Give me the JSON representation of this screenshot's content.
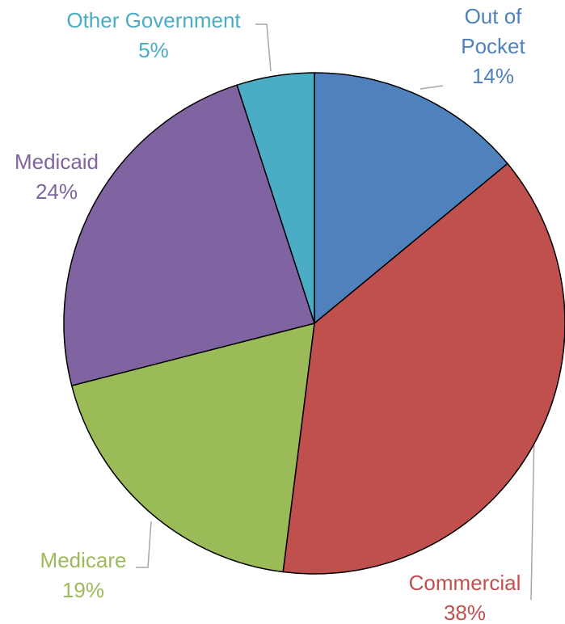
{
  "chart_data": {
    "type": "pie",
    "categories": [
      "Out of Pocket",
      "Commercial",
      "Medicare",
      "Medicaid",
      "Other Government"
    ],
    "values": [
      14,
      38,
      19,
      24,
      5
    ],
    "value_labels": [
      "14%",
      "38%",
      "19%",
      "24%",
      "5%"
    ],
    "colors": [
      "#4f81bd",
      "#c0504d",
      "#9bbb59",
      "#8064a2",
      "#4bacc6"
    ]
  }
}
